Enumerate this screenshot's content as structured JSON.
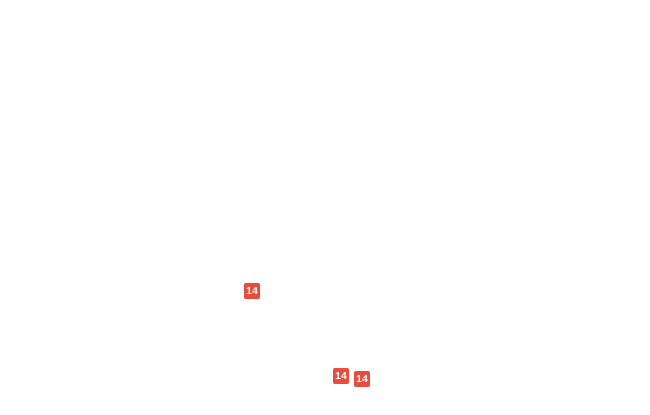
{
  "canvas": {
    "background": "#ffffff"
  },
  "colors": {
    "badge_background": "#e74c3c",
    "badge_text": "#ffffff"
  },
  "badges": [
    {
      "label": "14"
    },
    {
      "label": "14"
    },
    {
      "label": "14"
    }
  ]
}
